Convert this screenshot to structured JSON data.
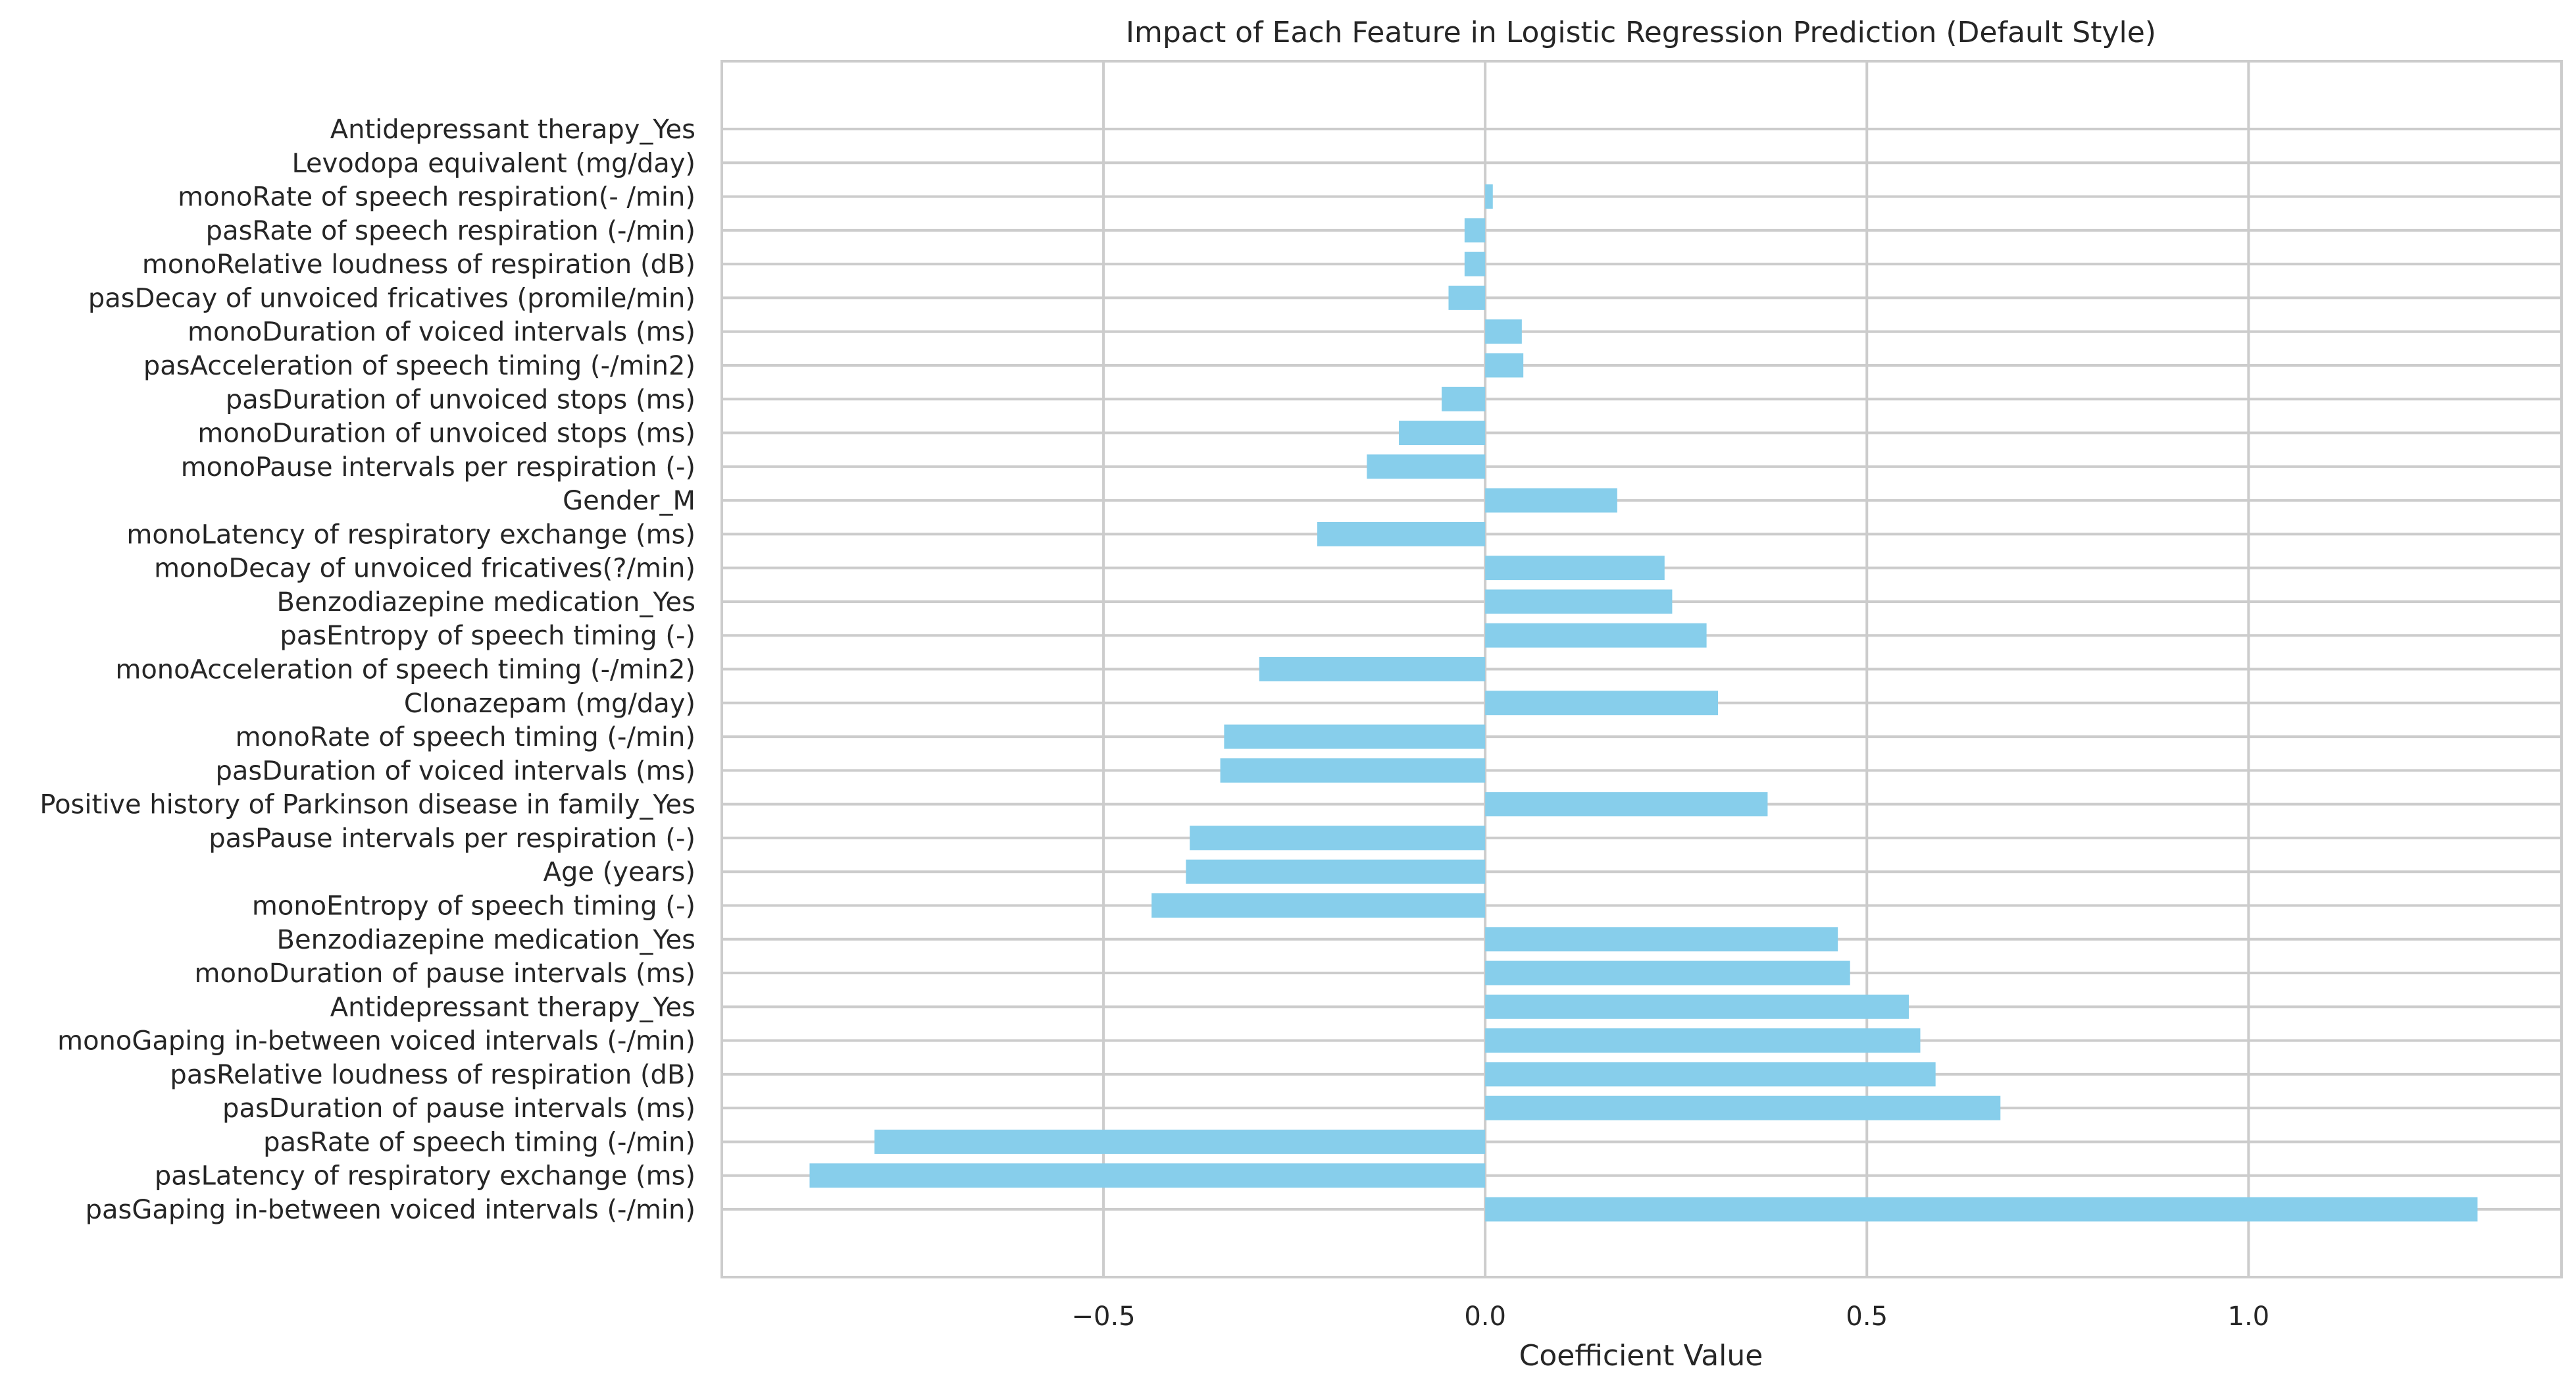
{
  "chart_data": {
    "type": "bar",
    "orientation": "horizontal",
    "title": "Impact of Each Feature in Logistic Regression Prediction (Default Style)",
    "xlabel": "Coefficient Value",
    "ylabel": "",
    "xlim": [
      -1.0,
      1.41
    ],
    "xticks": [
      -0.5,
      0.0,
      0.5,
      1.0
    ],
    "xtick_labels": [
      "−0.5",
      "0.0",
      "0.5",
      "1.0"
    ],
    "grid": true,
    "bar_color": "#87CEEB",
    "categories": [
      "pasGaping in-between voiced intervals (-/min)",
      "pasLatency of respiratory exchange (ms)",
      "pasRate of speech timing (-/min)",
      "pasDuration of pause intervals (ms)",
      "pasRelative loudness of respiration (dB)",
      "monoGaping in-between voiced intervals (-/min)",
      "Antidepressant therapy_Yes ",
      "monoDuration of pause intervals (ms)",
      "Benzodiazepine medication_Yes ",
      "monoEntropy of speech timing (-)",
      "Age (years)",
      "pasPause intervals per respiration (-)",
      "Positive history of Parkinson disease in family_Yes",
      "pasDuration of voiced intervals (ms)",
      "monoRate of speech timing (-/min)",
      "Clonazepam (mg/day)",
      "monoAcceleration of speech timing (-/min2)",
      "pasEntropy of speech timing (-)",
      "Benzodiazepine medication_Yes",
      "monoDecay of unvoiced fricatives(?/min)",
      "monoLatency of respiratory exchange (ms)",
      "Gender_M",
      "monoPause intervals per respiration (-)",
      "monoDuration of unvoiced stops (ms)",
      "pasDuration of unvoiced stops (ms)",
      "pasAcceleration of speech timing (-/min2)",
      "monoDuration of voiced intervals (ms)",
      "pasDecay of unvoiced fricatives (promile/min)",
      "monoRelative loudness of respiration (dB)",
      "pasRate of speech respiration (-/min)",
      "monoRate of speech respiration(- /min)",
      "Levodopa equivalent (mg/day)",
      "Antidepressant therapy_Yes"
    ],
    "values": [
      1.3,
      -0.885,
      -0.8,
      0.675,
      0.59,
      0.57,
      0.555,
      0.478,
      0.462,
      -0.437,
      -0.392,
      -0.387,
      0.37,
      -0.347,
      -0.342,
      0.305,
      -0.296,
      0.29,
      0.245,
      0.235,
      -0.22,
      0.173,
      -0.155,
      -0.113,
      -0.057,
      0.05,
      0.048,
      -0.048,
      -0.027,
      -0.027,
      0.01,
      0.0,
      0.0
    ]
  }
}
